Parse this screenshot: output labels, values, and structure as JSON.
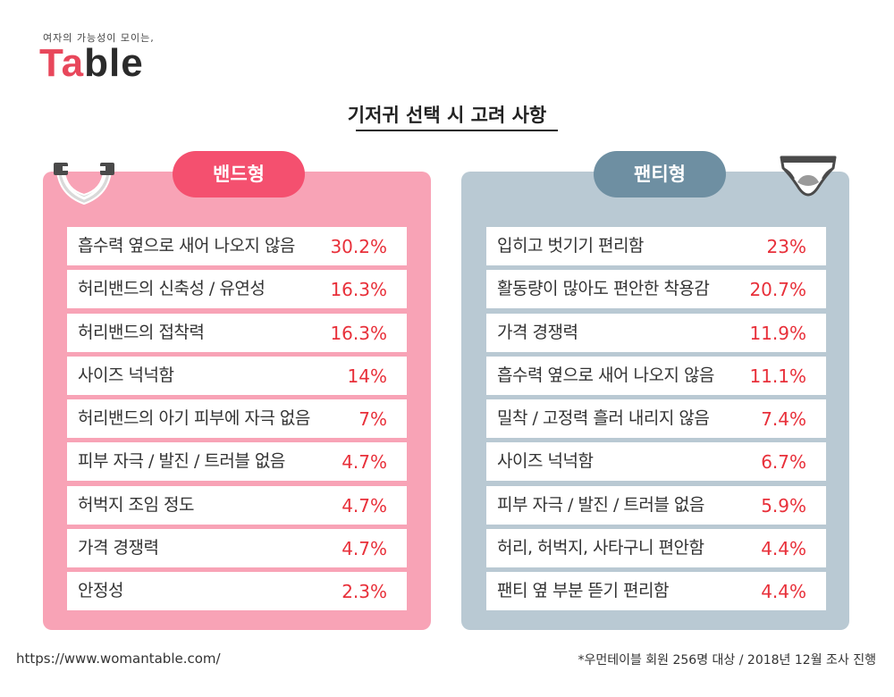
{
  "logo": {
    "tagline": "여자의 가능성이 모이는,",
    "name_red": "Ta",
    "name_dark": "ble"
  },
  "colors": {
    "band_panel": "#f8a3b6",
    "band_badge": "#f4506f",
    "panty_panel": "#b9c9d3",
    "panty_badge": "#6e8fa2",
    "value_red": "#e8303a"
  },
  "chart_data": {
    "type": "table",
    "title": "기저귀 선택 시 고려 사항",
    "series": [
      {
        "name": "밴드형",
        "rows": [
          {
            "label": "흡수력  옆으로 새어 나오지 않음",
            "value": "30.2%"
          },
          {
            "label": "허리밴드의 신축성 / 유연성",
            "value": "16.3%"
          },
          {
            "label": "허리밴드의 접착력",
            "value": "16.3%"
          },
          {
            "label": "사이즈 넉넉함",
            "value": "14%"
          },
          {
            "label": "허리밴드의 아기 피부에 자극 없음",
            "value": "7%"
          },
          {
            "label": "피부 자극 / 발진 / 트러블 없음",
            "value": "4.7%"
          },
          {
            "label": "허벅지 조임 정도",
            "value": "4.7%"
          },
          {
            "label": "가격 경쟁력",
            "value": "4.7%"
          },
          {
            "label": "안정성",
            "value": "2.3%"
          }
        ]
      },
      {
        "name": "팬티형",
        "rows": [
          {
            "label": "입히고 벗기기 편리함",
            "value": "23%"
          },
          {
            "label": "활동량이 많아도 편안한 착용감",
            "value": "20.7%"
          },
          {
            "label": "가격 경쟁력",
            "value": "11.9%"
          },
          {
            "label": "흡수력 옆으로 새어 나오지 않음",
            "value": "11.1%"
          },
          {
            "label": "밀착 / 고정력 흘러 내리지 않음",
            "value": "7.4%"
          },
          {
            "label": "사이즈 넉넉함",
            "value": "6.7%"
          },
          {
            "label": "피부 자극 / 발진 / 트러블 없음",
            "value": "5.9%"
          },
          {
            "label": "허리, 허벅지, 사타구니 편안함",
            "value": "4.4%"
          },
          {
            "label": "팬티 옆 부분 뜯기 편리함",
            "value": "4.4%"
          }
        ]
      }
    ]
  },
  "footer": {
    "url": "https://www.womantable.com/",
    "note": "*우먼테이블 회원 256명 대상 / 2018년 12월 조사 진행"
  }
}
